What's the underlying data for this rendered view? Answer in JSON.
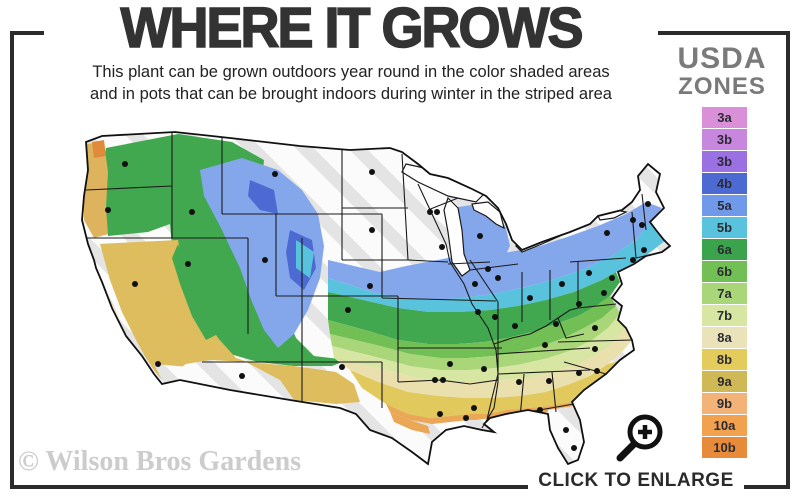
{
  "header": {
    "title": "WHERE IT GROWS",
    "subtitle_line1": "This plant can be grown outdoors year round in the color shaded areas",
    "subtitle_line2": "and in pots that can be brought indoors during winter in the striped area"
  },
  "legend": {
    "title_line1": "USDA",
    "title_line2": "ZONES",
    "zones": [
      {
        "label": "3a",
        "color": "#da90d8"
      },
      {
        "label": "3b",
        "color": "#c887de"
      },
      {
        "label": "3b",
        "color": "#9b70e2"
      },
      {
        "label": "4b",
        "color": "#4d6ad3"
      },
      {
        "label": "5a",
        "color": "#7199e9"
      },
      {
        "label": "5b",
        "color": "#59c3de"
      },
      {
        "label": "6a",
        "color": "#3aa34c"
      },
      {
        "label": "6b",
        "color": "#72c055"
      },
      {
        "label": "7a",
        "color": "#a8d678"
      },
      {
        "label": "7b",
        "color": "#d7e6a2"
      },
      {
        "label": "8a",
        "color": "#eae3ba"
      },
      {
        "label": "8b",
        "color": "#e3cb5c"
      },
      {
        "label": "9a",
        "color": "#cfb957"
      },
      {
        "label": "9b",
        "color": "#f3b378"
      },
      {
        "label": "10a",
        "color": "#f2a14e"
      },
      {
        "label": "10b",
        "color": "#e78b3b"
      }
    ]
  },
  "map": {
    "watermark": "© Wilson Bros Gardens",
    "striped_area_meaning": "striped area",
    "icon": "us-zone-map"
  },
  "enlarge": {
    "label": "CLICK TO ENLARGE",
    "icon": "magnifier-plus-icon"
  },
  "colors": {
    "frame": "#2b2b2b",
    "title_text": "#333333",
    "legend_title_text": "#7a7a7a",
    "watermark_text": "#cccccc",
    "stripe_gray": "#e4e4e4"
  }
}
